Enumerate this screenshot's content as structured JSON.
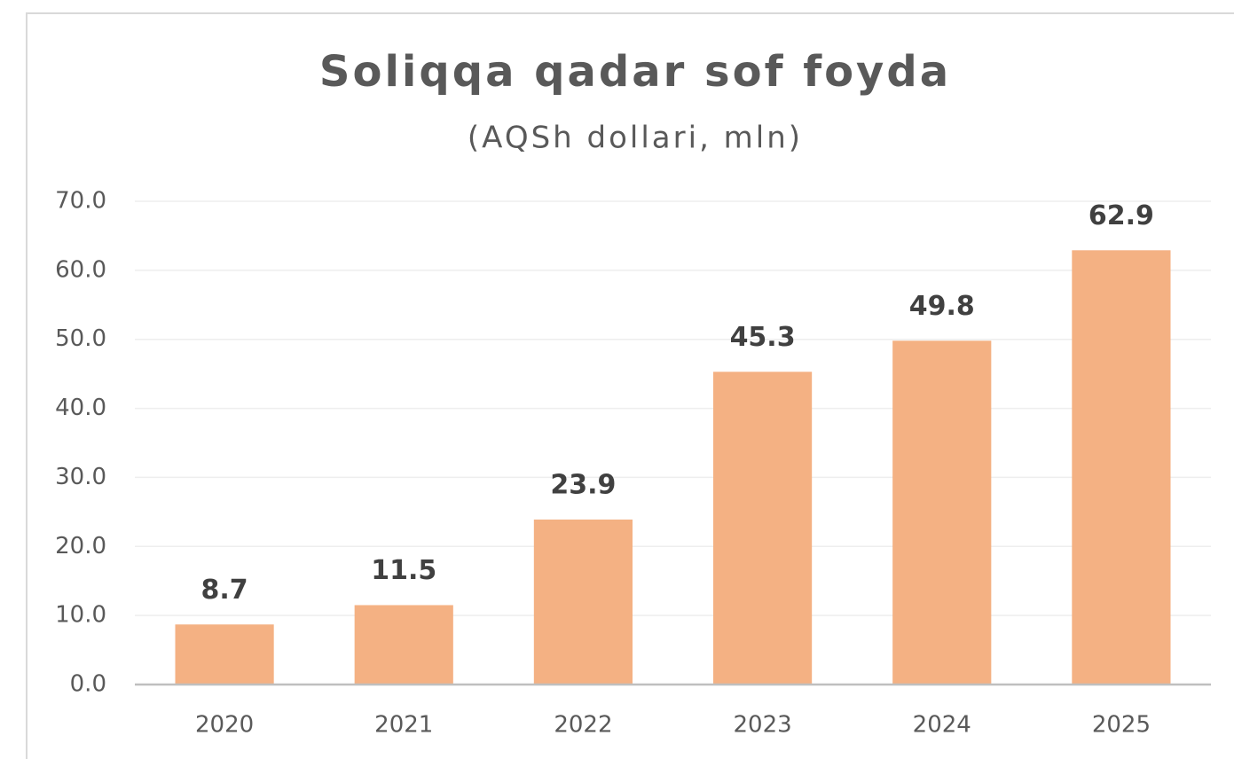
{
  "chart_data": {
    "type": "bar",
    "title": "Soliqqa qadar sof foyda",
    "subtitle": "(AQSh dollari, mln)",
    "categories": [
      "2020",
      "2021",
      "2022",
      "2023",
      "2024",
      "2025"
    ],
    "values": [
      8.7,
      11.5,
      23.9,
      45.3,
      49.8,
      62.9
    ],
    "color": "#f4b183",
    "ylim": [
      0,
      70
    ],
    "yticks": [
      {
        "value": 0,
        "label": "0.0"
      },
      {
        "value": 10,
        "label": "10.0"
      },
      {
        "value": 20,
        "label": "20.0"
      },
      {
        "value": 30,
        "label": "30.0"
      },
      {
        "value": 40,
        "label": "40.0"
      },
      {
        "value": 50,
        "label": "50.0"
      },
      {
        "value": 60,
        "label": "60.0"
      },
      {
        "value": 70,
        "label": "70.0"
      }
    ],
    "grid": true
  }
}
